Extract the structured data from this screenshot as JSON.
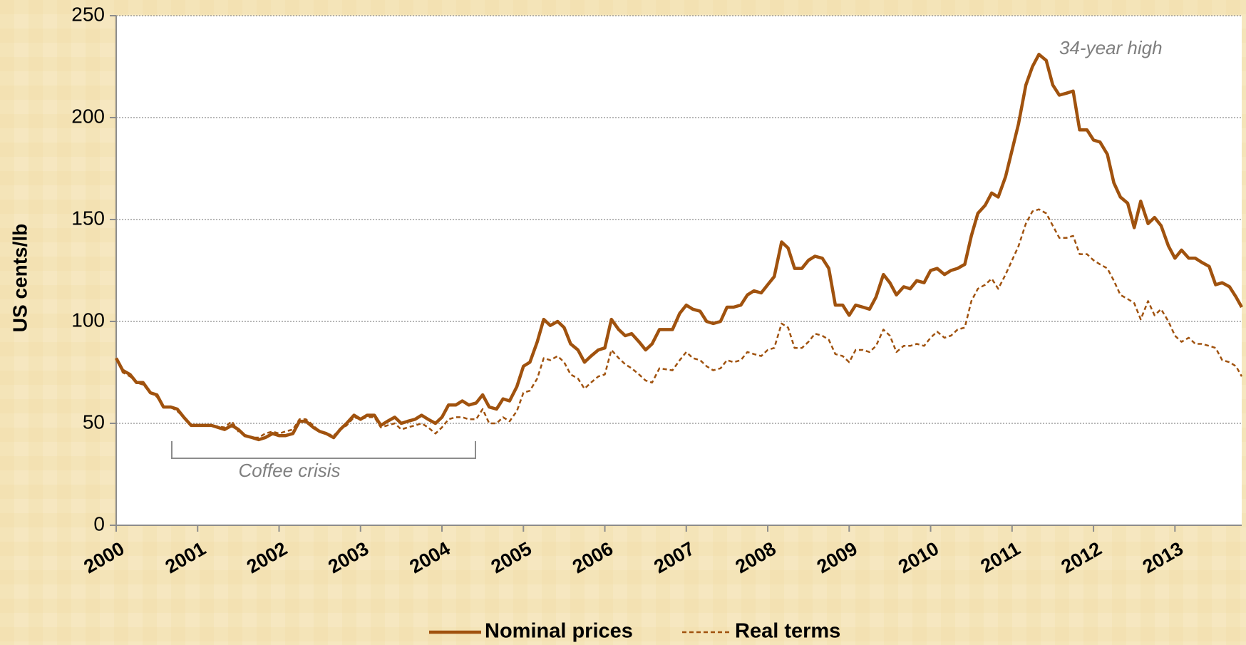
{
  "chart_data": {
    "type": "line",
    "y_label": "US cents/lb",
    "annotations": [
      {
        "text": "34-year high"
      },
      {
        "text": "Coffee crisis"
      }
    ],
    "xlim": [
      2000,
      2013.82
    ],
    "xticks": [
      2000,
      2001,
      2002,
      2003,
      2004,
      2005,
      2006,
      2007,
      2008,
      2009,
      2010,
      2011,
      2012,
      2013
    ],
    "ylim": [
      0,
      250
    ],
    "yticks": [
      0,
      50,
      100,
      150,
      200,
      250
    ],
    "grid": true,
    "legend": "bottom",
    "x": [
      2000,
      2000.08,
      2000.17,
      2000.25,
      2000.33,
      2000.42,
      2000.5,
      2000.58,
      2000.67,
      2000.75,
      2000.83,
      2000.92,
      2001,
      2001.17,
      2001.33,
      2001.42,
      2001.5,
      2001.58,
      2001.67,
      2001.75,
      2001.83,
      2001.92,
      2002,
      2002.08,
      2002.17,
      2002.25,
      2002.33,
      2002.42,
      2002.5,
      2002.58,
      2002.67,
      2002.75,
      2002.83,
      2002.92,
      2003,
      2003.08,
      2003.17,
      2003.25,
      2003.33,
      2003.42,
      2003.5,
      2003.58,
      2003.67,
      2003.75,
      2003.83,
      2003.92,
      2004,
      2004.08,
      2004.17,
      2004.25,
      2004.33,
      2004.42,
      2004.5,
      2004.58,
      2004.67,
      2004.75,
      2004.83,
      2004.92,
      2005,
      2005.08,
      2005.17,
      2005.25,
      2005.33,
      2005.42,
      2005.5,
      2005.58,
      2005.67,
      2005.75,
      2005.83,
      2005.92,
      2006,
      2006.08,
      2006.17,
      2006.25,
      2006.33,
      2006.42,
      2006.5,
      2006.58,
      2006.67,
      2006.83,
      2006.92,
      2007,
      2007.08,
      2007.17,
      2007.25,
      2007.33,
      2007.42,
      2007.5,
      2007.58,
      2007.67,
      2007.75,
      2007.83,
      2007.92,
      2008,
      2008.08,
      2008.17,
      2008.25,
      2008.33,
      2008.42,
      2008.5,
      2008.58,
      2008.67,
      2008.75,
      2008.83,
      2008.92,
      2009,
      2009.08,
      2009.17,
      2009.25,
      2009.33,
      2009.42,
      2009.5,
      2009.58,
      2009.67,
      2009.75,
      2009.83,
      2009.92,
      2010,
      2010.08,
      2010.17,
      2010.25,
      2010.33,
      2010.42,
      2010.5,
      2010.58,
      2010.67,
      2010.75,
      2010.83,
      2010.92,
      2011,
      2011.08,
      2011.17,
      2011.25,
      2011.33,
      2011.42,
      2011.5,
      2011.58,
      2011.67,
      2011.75,
      2011.83,
      2011.92,
      2012,
      2012.08,
      2012.17,
      2012.25,
      2012.33,
      2012.42,
      2012.5,
      2012.58,
      2012.67,
      2012.75,
      2012.83,
      2012.92,
      2013,
      2013.08,
      2013.17,
      2013.25,
      2013.33,
      2013.42,
      2013.5,
      2013.58,
      2013.67,
      2013.75,
      2013.82
    ],
    "series": [
      {
        "name": "Nominal prices",
        "color": "#a0520e",
        "line_style": "solid",
        "values": [
          82,
          76,
          74,
          70,
          70,
          65,
          64,
          58,
          58,
          57,
          53,
          49,
          49,
          49,
          47,
          49,
          47,
          44,
          43,
          42,
          43,
          45,
          44,
          44,
          45,
          51,
          51,
          48,
          46,
          45,
          43,
          47,
          50,
          54,
          52,
          54,
          54,
          49,
          51,
          53,
          50,
          51,
          52,
          54,
          52,
          50,
          53,
          59,
          59,
          61,
          59,
          60,
          64,
          58,
          57,
          62,
          61,
          68,
          78,
          80,
          90,
          101,
          98,
          100,
          97,
          89,
          86,
          80,
          83,
          86,
          87,
          101,
          96,
          93,
          94,
          90,
          86,
          89,
          96,
          96,
          104,
          108,
          106,
          105,
          100,
          99,
          100,
          107,
          107,
          108,
          113,
          115,
          114,
          118,
          122,
          139,
          136,
          126,
          126,
          130,
          132,
          131,
          126,
          108,
          108,
          103,
          108,
          107,
          106,
          112,
          123,
          119,
          113,
          117,
          116,
          120,
          119,
          125,
          126,
          123,
          125,
          126,
          128,
          142,
          153,
          157,
          163,
          161,
          171,
          184,
          197,
          216,
          225,
          231,
          228,
          216,
          211,
          212,
          213,
          194,
          194,
          189,
          188,
          182,
          168,
          161,
          158,
          146,
          159,
          148,
          151,
          147,
          137,
          131,
          135,
          131,
          131,
          129,
          127,
          118,
          119,
          117,
          112,
          107
        ]
      },
      {
        "name": "Real terms",
        "color": "#a0520e",
        "line_style": "dashed",
        "values": [
          82,
          75,
          73,
          70,
          69,
          65,
          63,
          58,
          58,
          56,
          53,
          49,
          49,
          49,
          48,
          51,
          46,
          44,
          43,
          43,
          45,
          46,
          45,
          46,
          47,
          52,
          52,
          49,
          46,
          45,
          44,
          47,
          49,
          53,
          52,
          53,
          53,
          48,
          49,
          50,
          47,
          48,
          49,
          50,
          48,
          45,
          48,
          52,
          53,
          53,
          52,
          52,
          57,
          50,
          50,
          53,
          51,
          56,
          65,
          66,
          72,
          82,
          81,
          83,
          80,
          74,
          72,
          67,
          70,
          73,
          74,
          86,
          82,
          79,
          77,
          74,
          71,
          70,
          77,
          76,
          81,
          85,
          82,
          81,
          78,
          76,
          77,
          81,
          80,
          81,
          85,
          84,
          83,
          86,
          87,
          99,
          97,
          87,
          87,
          90,
          94,
          93,
          91,
          84,
          83,
          80,
          86,
          86,
          85,
          88,
          96,
          93,
          85,
          88,
          88,
          89,
          88,
          92,
          95,
          92,
          93,
          96,
          97,
          110,
          116,
          118,
          121,
          116,
          123,
          130,
          137,
          148,
          154,
          155,
          153,
          147,
          141,
          141,
          142,
          133,
          133,
          130,
          128,
          126,
          120,
          113,
          111,
          109,
          101,
          110,
          103,
          106,
          100,
          93,
          90,
          92,
          89,
          89,
          88,
          87,
          81,
          80,
          78,
          73
        ]
      }
    ]
  }
}
